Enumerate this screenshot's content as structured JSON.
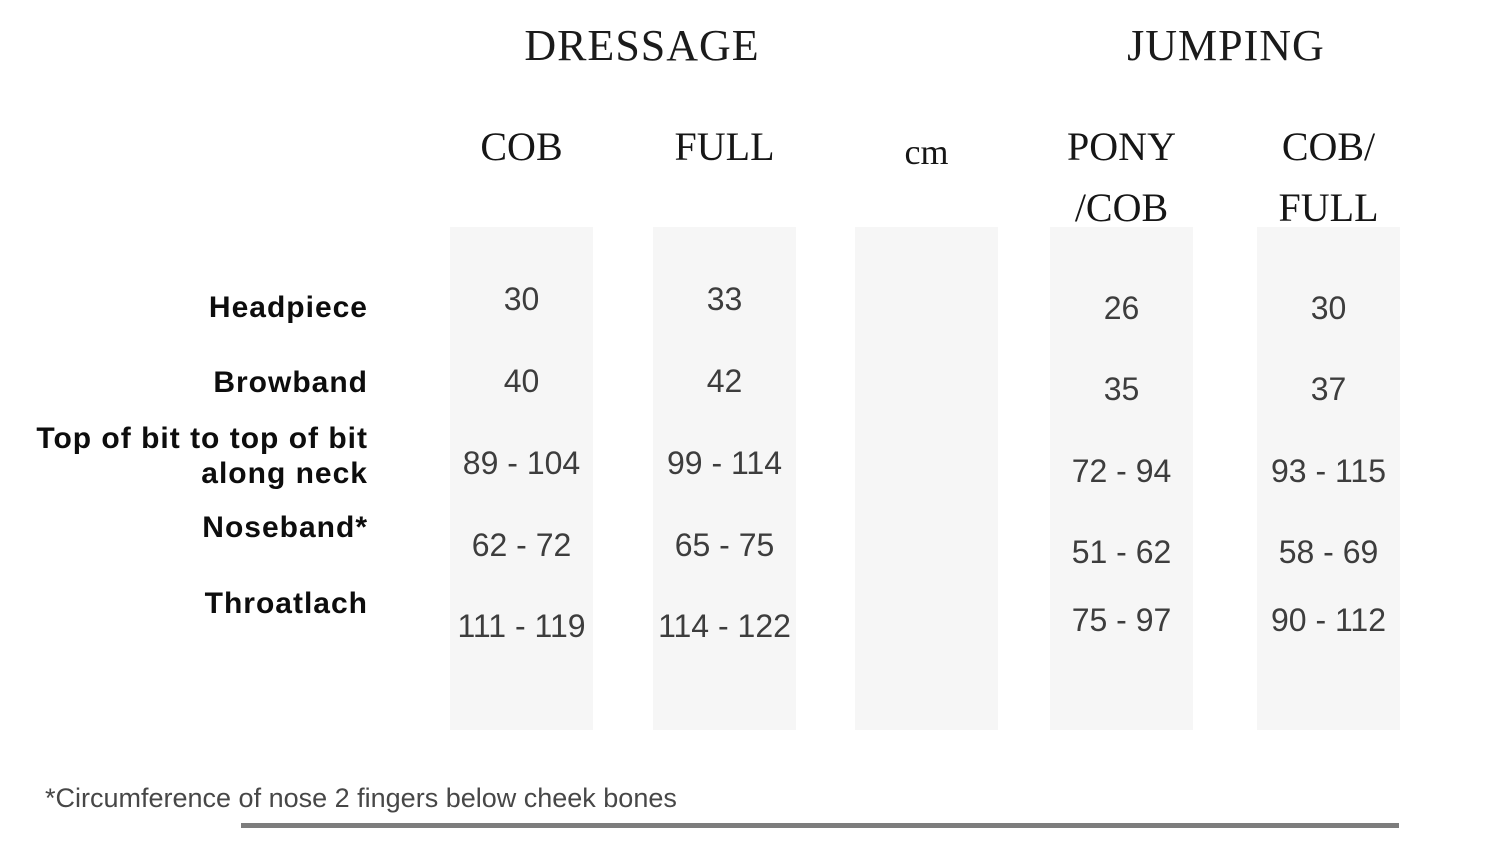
{
  "chart": {
    "group_headers": [
      {
        "label": "DRESSAGE"
      },
      {
        "label": "JUMPING"
      }
    ],
    "columns": [
      {
        "label": "COB"
      },
      {
        "label": "FULL"
      },
      {
        "label": "cm"
      },
      {
        "line1": "PONY",
        "line2": "/COB"
      },
      {
        "line1": "COB/",
        "line2": "FULL"
      }
    ],
    "rows": [
      {
        "label": "Headpiece",
        "values": [
          "30",
          "33",
          "26",
          "30"
        ]
      },
      {
        "label": "Browband",
        "values": [
          "40",
          "42",
          "35",
          "37"
        ]
      },
      {
        "label_line1": "Top of bit to top of bit",
        "label_line2": "along neck",
        "values": [
          "89 - 104",
          "99 - 114",
          "72 - 94",
          "93 - 115"
        ]
      },
      {
        "label": "Noseband*",
        "values": [
          "62 - 72",
          "65 - 75",
          "51 - 62",
          "58 - 69"
        ]
      },
      {
        "label": "Throatlach",
        "values": [
          "111 - 119",
          "114 - 122",
          "75 - 97",
          "90 - 112"
        ]
      }
    ],
    "footnote": "*Circumference of nose 2 fingers below cheek bones"
  },
  "colors": {
    "band_background": "#f6f6f6",
    "value_text": "#3d3d3d",
    "label_text": "#0d0d0d",
    "header_text": "#1b1b1b",
    "rule": "#7d7d7d"
  }
}
